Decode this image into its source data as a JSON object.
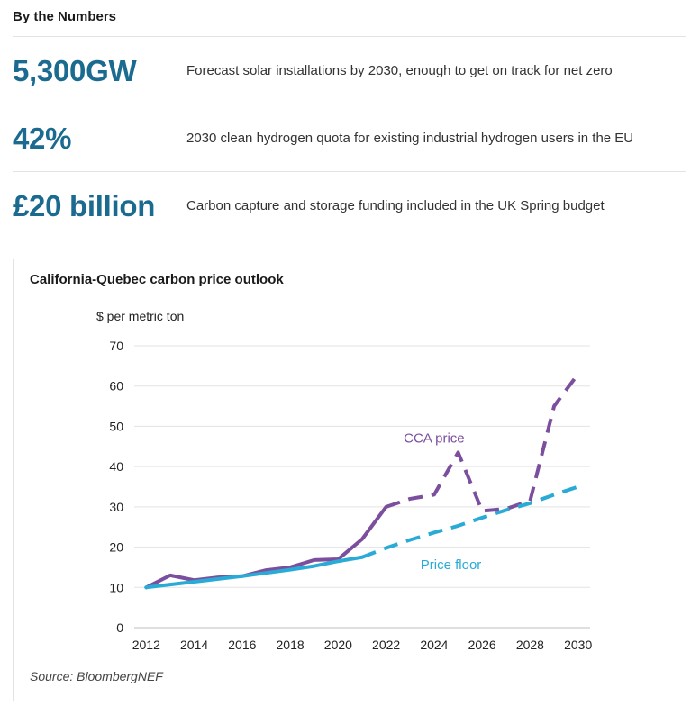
{
  "section_title": "By the Numbers",
  "stats": [
    {
      "value": "5,300GW",
      "description": "Forecast solar installations by 2030, enough to get on track for net zero"
    },
    {
      "value": "42%",
      "description": "2030 clean hydrogen quota for existing industrial hydrogen users in the EU"
    },
    {
      "value": "£20 billion",
      "description": "Carbon capture and storage funding included in the UK Spring budget"
    }
  ],
  "chart_data": {
    "type": "line",
    "title": "California-Quebec carbon price outlook",
    "ylabel": "$ per metric ton",
    "xlabel": "",
    "ylim": [
      0,
      70
    ],
    "xlim": [
      2011.5,
      2030.5
    ],
    "yticks": [
      0,
      10,
      20,
      30,
      40,
      50,
      60,
      70
    ],
    "xticks": [
      2012,
      2014,
      2016,
      2018,
      2020,
      2022,
      2024,
      2026,
      2028,
      2030
    ],
    "grid": true,
    "series": [
      {
        "name": "CCA price",
        "color": "#7b4f9e",
        "solid": {
          "x": [
            2012,
            2013,
            2014,
            2015,
            2016,
            2017,
            2018,
            2019,
            2020,
            2021,
            2022
          ],
          "y": [
            10,
            13,
            11.8,
            12.5,
            12.8,
            14.3,
            15,
            16.8,
            17,
            22,
            30
          ]
        },
        "dashed": {
          "x": [
            2022,
            2023,
            2024,
            2025,
            2026,
            2027,
            2028,
            2029,
            2030
          ],
          "y": [
            30,
            32,
            33,
            43.5,
            29,
            29.5,
            31.5,
            55,
            63
          ]
        }
      },
      {
        "name": "Price floor",
        "color": "#29abd6",
        "solid": {
          "x": [
            2012,
            2013,
            2014,
            2015,
            2016,
            2017,
            2018,
            2019,
            2020,
            2021
          ],
          "y": [
            10,
            10.7,
            11.4,
            12.1,
            12.8,
            13.6,
            14.4,
            15.3,
            16.5,
            17.5
          ]
        },
        "dashed": {
          "x": [
            2021,
            2022,
            2023,
            2024,
            2025,
            2026,
            2027,
            2028,
            2029,
            2030
          ],
          "y": [
            17.5,
            19.8,
            21.8,
            23.6,
            25.3,
            27.3,
            29.2,
            30.9,
            33,
            35
          ]
        }
      }
    ],
    "annotations": [
      {
        "text": "CCA price",
        "x": 2024,
        "y": 46,
        "color": "#7b4f9e"
      },
      {
        "text": "Price floor",
        "x": 2024.7,
        "y": 14.5,
        "color": "#29abd6"
      }
    ],
    "source": "Source: BloombergNEF"
  }
}
